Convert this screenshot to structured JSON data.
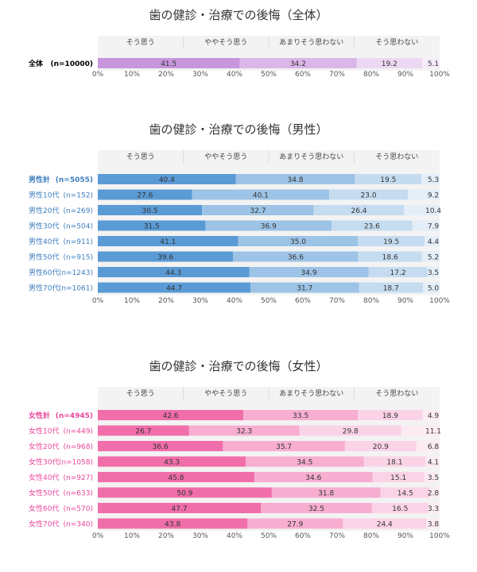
{
  "chart_data": [
    {
      "type": "bar",
      "stacked": true,
      "orientation": "horizontal",
      "title": "歯の健診・治療での後悔（全体）",
      "legend": [
        "そう思う",
        "ややそう思う",
        "あまりそう思わない",
        "そう思わない"
      ],
      "colors": [
        "#c896dc",
        "#dbb6e8",
        "#ecd8f2",
        "#f7ecfa"
      ],
      "label_color": "#000000",
      "rows": [
        {
          "label": "全体",
          "n": "(n=10000)",
          "values": [
            41.5,
            34.2,
            19.2,
            5.1
          ]
        }
      ],
      "xlim": [
        0,
        100
      ],
      "xticks": [
        "0%",
        "10%",
        "20%",
        "30%",
        "40%",
        "50%",
        "60%",
        "70%",
        "80%",
        "90%",
        "100%"
      ]
    },
    {
      "type": "bar",
      "stacked": true,
      "orientation": "horizontal",
      "title": "歯の健診・治療での後悔（男性）",
      "legend": [
        "そう思う",
        "ややそう思う",
        "あまりそう思わない",
        "そう思わない"
      ],
      "colors": [
        "#5b9bd5",
        "#9dc3e6",
        "#c5dcf0",
        "#e3eef8"
      ],
      "label_color": "#3f7fbf",
      "rows": [
        {
          "label": "男性計",
          "n": "(n=5055)",
          "values": [
            40.4,
            34.8,
            19.5,
            5.3
          ]
        },
        {
          "label": "男性10代",
          "n": "(n=152)",
          "values": [
            27.6,
            40.1,
            23.0,
            9.2
          ]
        },
        {
          "label": "男性20代",
          "n": "(n=269)",
          "values": [
            30.5,
            32.7,
            26.4,
            10.4
          ]
        },
        {
          "label": "男性30代",
          "n": "(n=504)",
          "values": [
            31.5,
            36.9,
            23.6,
            7.9
          ]
        },
        {
          "label": "男性40代",
          "n": "(n=911)",
          "values": [
            41.1,
            35.0,
            19.5,
            4.4
          ]
        },
        {
          "label": "男性50代",
          "n": "(n=915)",
          "values": [
            39.6,
            36.6,
            18.6,
            5.2
          ]
        },
        {
          "label": "男性60代",
          "n": "(n=1243)",
          "values": [
            44.3,
            34.9,
            17.2,
            3.5
          ]
        },
        {
          "label": "男性70代",
          "n": "(n=1061)",
          "values": [
            44.7,
            31.7,
            18.7,
            5.0
          ]
        }
      ],
      "xlim": [
        0,
        100
      ],
      "xticks": [
        "0%",
        "10%",
        "20%",
        "30%",
        "40%",
        "50%",
        "60%",
        "70%",
        "80%",
        "90%",
        "100%"
      ]
    },
    {
      "type": "bar",
      "stacked": true,
      "orientation": "horizontal",
      "title": "歯の健診・治療での後悔（女性）",
      "legend": [
        "そう思う",
        "ややそう思う",
        "あまりそう思わない",
        "そう思わない"
      ],
      "colors": [
        "#f06eaa",
        "#f7aed0",
        "#fbd3e6",
        "#fdebf3"
      ],
      "label_color": "#e8479a",
      "rows": [
        {
          "label": "女性計",
          "n": "(n=4945)",
          "values": [
            42.6,
            33.5,
            18.9,
            4.9
          ]
        },
        {
          "label": "女性10代",
          "n": "(n=449)",
          "values": [
            26.7,
            32.3,
            29.8,
            11.1
          ]
        },
        {
          "label": "女性20代",
          "n": "(n=968)",
          "values": [
            36.6,
            35.7,
            20.9,
            6.8
          ]
        },
        {
          "label": "女性30代",
          "n": "(n=1058)",
          "values": [
            43.3,
            34.5,
            18.1,
            4.1
          ]
        },
        {
          "label": "女性40代",
          "n": "(n=927)",
          "values": [
            45.8,
            34.6,
            15.1,
            3.5
          ]
        },
        {
          "label": "女性50代",
          "n": "(n=633)",
          "values": [
            50.9,
            31.8,
            14.5,
            2.8
          ]
        },
        {
          "label": "女性60代",
          "n": "(n=570)",
          "values": [
            47.7,
            32.5,
            16.5,
            3.3
          ]
        },
        {
          "label": "女性70代",
          "n": "(n=340)",
          "values": [
            43.8,
            27.9,
            24.4,
            3.8
          ]
        }
      ],
      "xlim": [
        0,
        100
      ],
      "xticks": [
        "0%",
        "10%",
        "20%",
        "30%",
        "40%",
        "50%",
        "60%",
        "70%",
        "80%",
        "90%",
        "100%"
      ]
    }
  ]
}
